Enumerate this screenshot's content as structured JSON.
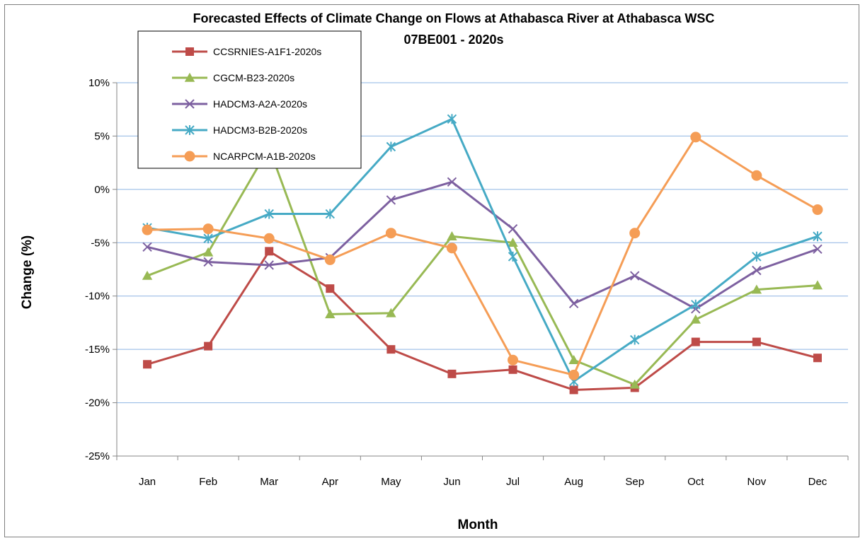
{
  "chart_data": {
    "type": "line",
    "title": "Forecasted Effects of Climate Change on Flows  at Athabasca River at Athabasca WSC",
    "subtitle": "07BE001  - 2020s",
    "xlabel": "Month",
    "ylabel": "Change (%)",
    "categories": [
      "Jan",
      "Feb",
      "Mar",
      "Apr",
      "May",
      "Jun",
      "Jul",
      "Aug",
      "Sep",
      "Oct",
      "Nov",
      "Dec"
    ],
    "ylim": [
      -25,
      10
    ],
    "yticks": [
      -25,
      -20,
      -15,
      -10,
      -5,
      0,
      5,
      10
    ],
    "ytick_labels": [
      "-25%",
      "-20%",
      "-15%",
      "-10%",
      "-5%",
      "0%",
      "5%",
      "10%"
    ],
    "grid": "horizontal",
    "legend_position": "top-left",
    "series": [
      {
        "name": "CCSRNIES-A1F1-2020s",
        "color": "#be4b48",
        "marker": "square",
        "values": [
          -16.4,
          -14.7,
          -5.8,
          -9.3,
          -15.0,
          -17.3,
          -16.9,
          -18.8,
          -18.6,
          -14.3,
          -14.3,
          -15.8
        ]
      },
      {
        "name": "CGCM-B23-2020s",
        "color": "#98b954",
        "marker": "triangle",
        "values": [
          -8.1,
          -5.9,
          3.9,
          -11.7,
          -11.6,
          -4.4,
          -5.0,
          -16.0,
          -18.3,
          -12.2,
          -9.4,
          -9.0
        ]
      },
      {
        "name": "HADCM3-A2A-2020s",
        "color": "#7d60a0",
        "marker": "x",
        "values": [
          -5.4,
          -6.8,
          -7.1,
          -6.4,
          -1.0,
          0.7,
          -3.7,
          -10.7,
          -8.1,
          -11.2,
          -7.6,
          -5.6
        ]
      },
      {
        "name": "HADCM3-B2B-2020s",
        "color": "#46aac5",
        "marker": "star",
        "values": [
          -3.6,
          -4.6,
          -2.3,
          -2.3,
          4.0,
          6.6,
          -6.3,
          -18.0,
          -14.1,
          -10.8,
          -6.3,
          -4.4
        ]
      },
      {
        "name": "NCARPCM-A1B-2020s",
        "color": "#f59d56",
        "marker": "circle",
        "values": [
          -3.8,
          -3.7,
          -4.6,
          -6.6,
          -4.1,
          -5.5,
          -16.0,
          -17.4,
          -4.1,
          4.9,
          1.3,
          -1.9
        ]
      }
    ]
  }
}
